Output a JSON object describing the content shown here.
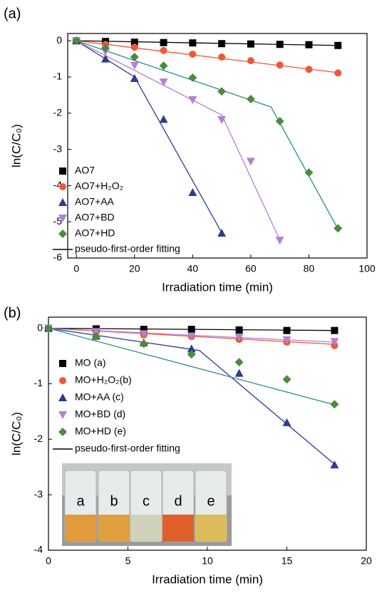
{
  "chart_data": [
    {
      "type": "scatter",
      "panel_label": "(a)",
      "xlabel": "Irradiation time (min)",
      "ylabel": "ln(C/C₀)",
      "xlim": [
        -3,
        100
      ],
      "ylim": [
        -6,
        0.2
      ],
      "xticks": [
        0,
        20,
        40,
        60,
        80,
        100
      ],
      "yticks": [
        0,
        -1,
        -2,
        -3,
        -4,
        -5,
        -6
      ],
      "fit_label": "pseudo-first-order fitting",
      "fit_legend_color": "#000000",
      "series": [
        {
          "name": "AO7",
          "color": "#000000",
          "marker": "square",
          "x": [
            0,
            10,
            20,
            30,
            40,
            50,
            60,
            70,
            80,
            90
          ],
          "values": [
            0,
            -0.02,
            -0.04,
            -0.05,
            -0.06,
            -0.08,
            -0.09,
            -0.1,
            -0.11,
            -0.13
          ],
          "fit": {
            "color": "#000000",
            "x": [
              0,
              90
            ],
            "values": [
              0,
              -0.13
            ]
          }
        },
        {
          "name": "AO7+H₂O₂",
          "color": "#f0573a",
          "marker": "circle",
          "x": [
            0,
            10,
            20,
            30,
            40,
            50,
            60,
            70,
            80,
            90
          ],
          "values": [
            0,
            -0.1,
            -0.18,
            -0.27,
            -0.37,
            -0.45,
            -0.55,
            -0.67,
            -0.79,
            -0.89
          ],
          "fit": {
            "color": "#f0573a",
            "x": [
              0,
              90
            ],
            "values": [
              0,
              -0.88
            ]
          }
        },
        {
          "name": "AO7+AA",
          "color": "#2e3b8f",
          "marker": "triangle-up",
          "x": [
            0,
            10,
            20,
            30,
            40,
            50
          ],
          "values": [
            0,
            -0.5,
            -1.04,
            -2.17,
            -4.19,
            -5.31
          ],
          "fit": {
            "color": "#2e3b8f",
            "x": [
              0,
              20,
              50
            ],
            "values": [
              0,
              -1.0,
              -5.3
            ]
          }
        },
        {
          "name": "AO7+BD",
          "color": "#b67fd2",
          "marker": "triangle-down",
          "x": [
            0,
            10,
            20,
            30,
            40,
            50,
            60,
            70
          ],
          "values": [
            0,
            -0.3,
            -0.68,
            -1.14,
            -1.63,
            -2.18,
            -3.33,
            -5.51
          ],
          "fit": {
            "color": "#b67fd2",
            "x": [
              0,
              50,
              70
            ],
            "values": [
              0,
              -2.05,
              -5.5
            ]
          }
        },
        {
          "name": "AO7+HD",
          "color": "#4a8c3a",
          "marker": "diamond",
          "x": [
            0,
            10,
            20,
            30,
            40,
            50,
            60,
            70,
            80,
            90
          ],
          "values": [
            0,
            -0.2,
            -0.45,
            -0.69,
            -1.02,
            -1.4,
            -1.61,
            -2.22,
            -3.64,
            -5.18
          ],
          "fit": {
            "color": "#2a8c8c",
            "x": [
              0,
              67,
              90
            ],
            "values": [
              0,
              -1.83,
              -5.2
            ]
          }
        }
      ]
    },
    {
      "type": "scatter",
      "panel_label": "(b)",
      "xlabel": "Irradiation time (min)",
      "ylabel": "ln(C/C₀)",
      "xlim": [
        0,
        20
      ],
      "ylim": [
        -4,
        0.2
      ],
      "xticks": [
        0,
        5,
        10,
        15,
        20
      ],
      "yticks": [
        0,
        -1,
        -2,
        -3,
        -4
      ],
      "fit_label": "pseudo-first-order fitting",
      "fit_legend_color": "#000000",
      "inset_labels": [
        "a",
        "b",
        "c",
        "d",
        "e"
      ],
      "series": [
        {
          "name": "MO (a)",
          "color": "#000000",
          "marker": "square",
          "x": [
            0,
            3,
            6,
            9,
            12,
            15,
            18
          ],
          "values": [
            0,
            -0.01,
            -0.02,
            -0.02,
            -0.03,
            -0.04,
            -0.04
          ],
          "fit": {
            "color": "#000000",
            "x": [
              0,
              18
            ],
            "values": [
              0,
              -0.04
            ]
          }
        },
        {
          "name": "MO+H₂O₂(b)",
          "color": "#f0573a",
          "marker": "circle",
          "x": [
            0,
            3,
            6,
            9,
            12,
            15,
            18
          ],
          "values": [
            0,
            -0.07,
            -0.12,
            -0.15,
            -0.2,
            -0.25,
            -0.31
          ],
          "fit": {
            "color": "#f0573a",
            "x": [
              0,
              18
            ],
            "values": [
              0,
              -0.29
            ]
          }
        },
        {
          "name": "MO+AA (c)",
          "color": "#2e3b8f",
          "marker": "triangle-up",
          "x": [
            0,
            3,
            6,
            9,
            12,
            15,
            18
          ],
          "values": [
            0,
            -0.14,
            -0.26,
            -0.37,
            -0.81,
            -1.7,
            -2.46
          ],
          "fit": {
            "color": "#2e3b8f",
            "x": [
              0,
              9.5,
              18
            ],
            "values": [
              0,
              -0.4,
              -2.45
            ]
          }
        },
        {
          "name": "MO+BD (d)",
          "color": "#b67fd2",
          "marker": "triangle-down",
          "x": [
            0,
            3,
            6,
            9,
            12,
            15,
            18
          ],
          "values": [
            0,
            -0.06,
            -0.1,
            -0.14,
            -0.16,
            -0.21,
            -0.24
          ],
          "fit": {
            "color": "#b67fd2",
            "x": [
              0,
              18
            ],
            "values": [
              0,
              -0.25
            ]
          }
        },
        {
          "name": "MO+HD (e)",
          "color": "#4a8c3a",
          "marker": "diamond",
          "x": [
            0,
            3,
            6,
            9,
            12,
            15,
            18
          ],
          "values": [
            0,
            -0.15,
            -0.28,
            -0.47,
            -0.61,
            -0.92,
            -1.37
          ],
          "fit": {
            "color": "#2a8c8c",
            "x": [
              0,
              18
            ],
            "values": [
              0,
              -1.38
            ]
          }
        }
      ]
    }
  ]
}
